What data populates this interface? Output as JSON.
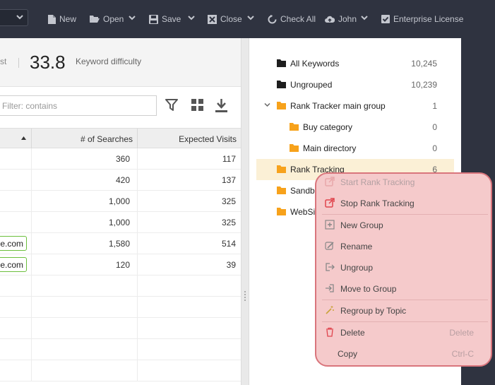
{
  "toolbar": {
    "items": [
      {
        "label": "New",
        "icon": "file-icon"
      },
      {
        "label": "Open",
        "icon": "folder-open-icon"
      },
      {
        "label": "Save",
        "icon": "floppy-icon"
      },
      {
        "label": "Close",
        "icon": "close-square-icon"
      },
      {
        "label": "Check All",
        "icon": "refresh-icon"
      },
      {
        "label": "John",
        "icon": "cloud-user-icon"
      },
      {
        "label": "Enterprise License",
        "icon": "checkbox-icon"
      }
    ]
  },
  "stats": {
    "prev_label_tail": "st",
    "difficulty_value": "33.8",
    "difficulty_label": "Keyword difficulty"
  },
  "filter": {
    "placeholder": "Filter: contains"
  },
  "grid": {
    "columns": [
      "",
      "# of Searches",
      "Expected Visits"
    ],
    "rows": [
      {
        "domain": "",
        "searches": "360",
        "visits": "117"
      },
      {
        "domain": "",
        "searches": "420",
        "visits": "137"
      },
      {
        "domain": "",
        "searches": "1,000",
        "visits": "325"
      },
      {
        "domain": "",
        "searches": "1,000",
        "visits": "325"
      },
      {
        "domain": "e.com",
        "searches": "1,580",
        "visits": "514"
      },
      {
        "domain": "e.com",
        "searches": "120",
        "visits": "39"
      },
      {
        "domain": "",
        "searches": "",
        "visits": ""
      },
      {
        "domain": "",
        "searches": "",
        "visits": ""
      },
      {
        "domain": "",
        "searches": "",
        "visits": ""
      },
      {
        "domain": "",
        "searches": "",
        "visits": ""
      },
      {
        "domain": "",
        "searches": "",
        "visits": ""
      }
    ]
  },
  "tree": {
    "items": [
      {
        "label": "All Keywords",
        "count": "10,245",
        "icon": "folder-dark-icon"
      },
      {
        "label": "Ungrouped",
        "count": "10,239",
        "icon": "folder-dark-icon"
      },
      {
        "label": "Rank Tracker main group",
        "count": "1",
        "icon": "folder-orange-icon"
      },
      {
        "label": "Buy category",
        "count": "0",
        "icon": "folder-orange-icon"
      },
      {
        "label": "Main directory",
        "count": "0",
        "icon": "folder-orange-icon"
      },
      {
        "label": "Rank Tracking",
        "count": "6",
        "icon": "folder-orange-icon"
      },
      {
        "label": "Sandb",
        "count": "",
        "icon": "folder-orange-icon"
      },
      {
        "label": "WebSi",
        "count": "",
        "icon": "folder-orange-icon"
      }
    ]
  },
  "context_menu": {
    "items": [
      {
        "label": "Start Rank Tracking",
        "shortcut": "",
        "icon": "export-icon"
      },
      {
        "label": "Stop Rank Tracking",
        "shortcut": "",
        "icon": "export-red-icon"
      },
      {
        "label": "New Group",
        "shortcut": "",
        "icon": "add-group-icon"
      },
      {
        "label": "Rename",
        "shortcut": "",
        "icon": "pencil-icon"
      },
      {
        "label": "Ungroup",
        "shortcut": "",
        "icon": "ungroup-icon"
      },
      {
        "label": "Move to Group",
        "shortcut": "",
        "icon": "move-to-icon"
      },
      {
        "label": "Regroup by Topic",
        "shortcut": "",
        "icon": "magic-wand-icon"
      },
      {
        "label": "Delete",
        "shortcut": "Delete",
        "icon": "trash-icon"
      },
      {
        "label": "Copy",
        "shortcut": "Ctrl-C",
        "icon": ""
      }
    ]
  },
  "colors": {
    "toolbar_bg": "#2f3340",
    "menu_bg": "#f5cacb",
    "menu_border": "#d9757c",
    "folder_orange": "#f7a21b",
    "selected_row": "#fbf0d6",
    "badge_green": "#6bbf3c"
  }
}
